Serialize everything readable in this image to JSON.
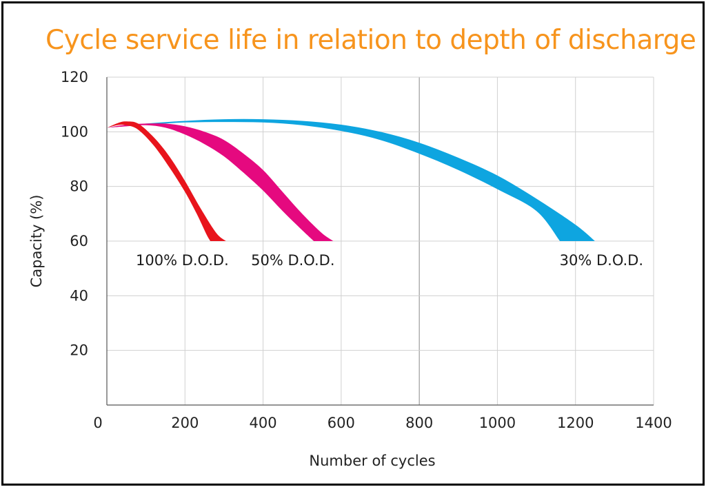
{
  "chart_data": {
    "type": "area",
    "title": "Cycle service life in relation to depth of discharge",
    "xlabel": "Number of cycles",
    "ylabel": "Capacity (%)",
    "xlim": [
      0,
      1400
    ],
    "ylim": [
      0,
      120
    ],
    "xticks": [
      "0",
      "200",
      "400",
      "600",
      "800",
      "1000",
      "1200",
      "1400"
    ],
    "yticks": [
      "20",
      "40",
      "60",
      "80",
      "100",
      "120"
    ],
    "grid": true,
    "series": [
      {
        "name": "100% D.O.D.",
        "label": "100% D.O.D.",
        "color": "#E8141C",
        "upper": [
          [
            0,
            101.5
          ],
          [
            30,
            103.3
          ],
          [
            50,
            103.8
          ],
          [
            80,
            103.0
          ],
          [
            120,
            98.0
          ],
          [
            160,
            91.0
          ],
          [
            200,
            82.0
          ],
          [
            240,
            72.0
          ],
          [
            280,
            63.0
          ],
          [
            305,
            60.0
          ]
        ],
        "lower": [
          [
            0,
            101.5
          ],
          [
            30,
            102.5
          ],
          [
            50,
            102.4
          ],
          [
            80,
            100.8
          ],
          [
            120,
            95.0
          ],
          [
            160,
            87.0
          ],
          [
            200,
            78.0
          ],
          [
            230,
            70.0
          ],
          [
            255,
            62.5
          ],
          [
            265,
            60.0
          ]
        ]
      },
      {
        "name": "50% D.O.D.",
        "label": "50% D.O.D.",
        "color": "#E5097F",
        "upper": [
          [
            0,
            101.5
          ],
          [
            50,
            102.6
          ],
          [
            100,
            103.0
          ],
          [
            150,
            103.0
          ],
          [
            200,
            102.0
          ],
          [
            250,
            100.0
          ],
          [
            300,
            97.0
          ],
          [
            350,
            92.0
          ],
          [
            400,
            86.0
          ],
          [
            450,
            78.0
          ],
          [
            500,
            70.0
          ],
          [
            550,
            63.0
          ],
          [
            580,
            60.0
          ]
        ],
        "lower": [
          [
            0,
            101.5
          ],
          [
            50,
            102.0
          ],
          [
            100,
            102.4
          ],
          [
            150,
            101.5
          ],
          [
            200,
            99.0
          ],
          [
            250,
            95.5
          ],
          [
            300,
            91.0
          ],
          [
            350,
            85.0
          ],
          [
            400,
            78.5
          ],
          [
            450,
            71.0
          ],
          [
            500,
            64.0
          ],
          [
            530,
            60.0
          ]
        ]
      },
      {
        "name": "30% D.O.D.",
        "label": "30% D.O.D.",
        "color": "#0EA5E0",
        "upper": [
          [
            0,
            101.5
          ],
          [
            100,
            103.0
          ],
          [
            200,
            104.0
          ],
          [
            300,
            104.6
          ],
          [
            400,
            104.6
          ],
          [
            500,
            104.0
          ],
          [
            600,
            102.6
          ],
          [
            700,
            100.0
          ],
          [
            800,
            96.0
          ],
          [
            900,
            90.5
          ],
          [
            1000,
            84.0
          ],
          [
            1100,
            75.5
          ],
          [
            1200,
            66.0
          ],
          [
            1250,
            60.0
          ]
        ],
        "lower": [
          [
            0,
            101.5
          ],
          [
            100,
            102.6
          ],
          [
            200,
            103.4
          ],
          [
            300,
            103.6
          ],
          [
            400,
            103.4
          ],
          [
            500,
            102.4
          ],
          [
            600,
            100.3
          ],
          [
            700,
            97.0
          ],
          [
            800,
            92.0
          ],
          [
            900,
            86.0
          ],
          [
            1000,
            79.0
          ],
          [
            1100,
            71.0
          ],
          [
            1160,
            60.0
          ]
        ]
      }
    ]
  }
}
